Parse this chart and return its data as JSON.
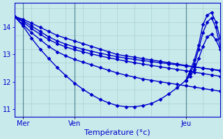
{
  "xlabel": "Température (°c)",
  "background_color": "#c8eaea",
  "line_color": "#0000cc",
  "marker": "D",
  "markersize": 2.5,
  "linewidth": 1.0,
  "xlim": [
    0,
    48
  ],
  "ylim": [
    10.7,
    14.9
  ],
  "yticks": [
    11,
    12,
    13,
    14
  ],
  "ytick_fontsize": 7,
  "xtick_fontsize": 7,
  "xlabel_fontsize": 8,
  "xtick_positions": [
    2,
    14,
    40
  ],
  "xtick_labels": [
    "Mer",
    "Ven",
    "Jeu"
  ],
  "vline_positions": [
    2,
    14,
    40
  ],
  "vline_color": "#5a8a9a",
  "grid_color": "#8ab8b8",
  "grid_alpha": 0.6,
  "series": [
    {
      "x": [
        0,
        2,
        4,
        6,
        8,
        10,
        12,
        14,
        16,
        18,
        20,
        22,
        24,
        26,
        28,
        30,
        32,
        34,
        36,
        38,
        40,
        42,
        44,
        46,
        48
      ],
      "y": [
        14.4,
        14.3,
        14.15,
        14.0,
        13.85,
        13.7,
        13.6,
        13.5,
        13.4,
        13.3,
        13.2,
        13.1,
        13.0,
        12.95,
        12.9,
        12.85,
        12.8,
        12.75,
        12.7,
        12.65,
        12.6,
        12.55,
        12.5,
        12.45,
        12.4
      ]
    },
    {
      "x": [
        0,
        2,
        4,
        6,
        8,
        10,
        12,
        14,
        16,
        18,
        20,
        22,
        24,
        26,
        28,
        30,
        32,
        34,
        36,
        38,
        40,
        42,
        44,
        46,
        48
      ],
      "y": [
        14.4,
        14.25,
        14.05,
        13.85,
        13.65,
        13.5,
        13.38,
        13.28,
        13.2,
        13.12,
        13.05,
        12.98,
        12.92,
        12.87,
        12.82,
        12.78,
        12.74,
        12.7,
        12.66,
        12.62,
        12.58,
        12.54,
        12.5,
        12.46,
        12.42
      ]
    },
    {
      "x": [
        0,
        2,
        4,
        6,
        8,
        10,
        12,
        14,
        16,
        18,
        20,
        22,
        24,
        26,
        28,
        30,
        32,
        34,
        36,
        38,
        40,
        42,
        44,
        46,
        48
      ],
      "y": [
        14.4,
        14.2,
        13.95,
        13.75,
        13.55,
        13.4,
        13.28,
        13.18,
        13.1,
        13.02,
        12.95,
        12.88,
        12.82,
        12.76,
        12.7,
        12.65,
        12.6,
        12.55,
        12.5,
        12.45,
        12.4,
        12.35,
        12.3,
        12.25,
        12.2
      ]
    },
    {
      "x": [
        0,
        2,
        4,
        6,
        8,
        10,
        12,
        14,
        16,
        18,
        20,
        22,
        24,
        26,
        28,
        30,
        32,
        34,
        36,
        38,
        40,
        42,
        44,
        46,
        48
      ],
      "y": [
        14.4,
        14.1,
        13.8,
        13.55,
        13.3,
        13.1,
        12.95,
        12.82,
        12.72,
        12.62,
        12.52,
        12.42,
        12.32,
        12.24,
        12.17,
        12.1,
        12.05,
        12.0,
        11.95,
        11.9,
        11.85,
        11.8,
        11.75,
        11.7,
        11.65
      ]
    },
    {
      "x": [
        0,
        2,
        4,
        6,
        8,
        10,
        12,
        14,
        16,
        18,
        20,
        22,
        24,
        26,
        28,
        30,
        32,
        34,
        36,
        38,
        40,
        41,
        42,
        43,
        44,
        45,
        46,
        47,
        48
      ],
      "y": [
        14.4,
        14.05,
        13.6,
        13.2,
        12.85,
        12.52,
        12.22,
        11.95,
        11.72,
        11.52,
        11.35,
        11.22,
        11.12,
        11.08,
        11.08,
        11.12,
        11.2,
        11.35,
        11.55,
        11.78,
        12.05,
        12.4,
        12.8,
        13.35,
        14.1,
        14.45,
        14.55,
        14.2,
        13.6
      ]
    },
    {
      "x": [
        40,
        41,
        42,
        43,
        44,
        45,
        46,
        47,
        48
      ],
      "y": [
        12.05,
        12.3,
        12.65,
        13.2,
        13.8,
        14.2,
        14.35,
        14.0,
        13.3
      ]
    },
    {
      "x": [
        40,
        41,
        42,
        43,
        44,
        45,
        46,
        47,
        48
      ],
      "y": [
        12.05,
        12.2,
        12.45,
        12.85,
        13.3,
        13.65,
        13.75,
        13.55,
        13.2
      ]
    }
  ]
}
